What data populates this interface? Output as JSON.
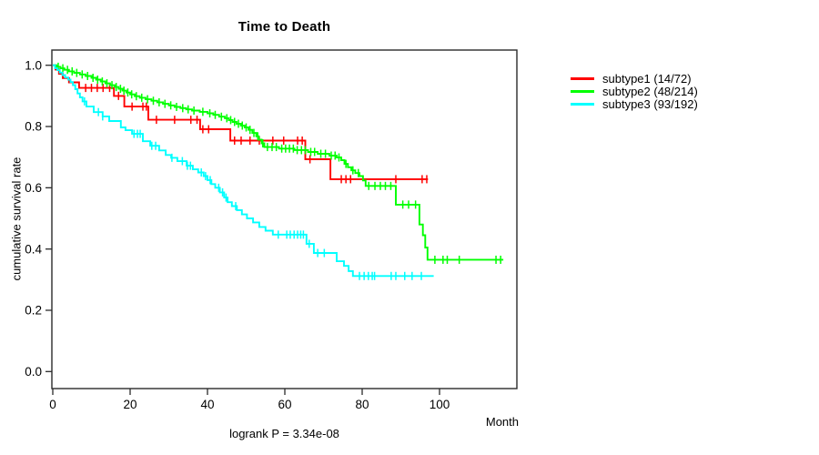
{
  "title": "Time to Death",
  "axes": {
    "x": {
      "label": "Month",
      "ticks": [
        "0",
        "20",
        "40",
        "60",
        "80",
        "100"
      ]
    },
    "y": {
      "label": "cumulative survival rate",
      "ticks": [
        "0.0",
        "0.2",
        "0.4",
        "0.6",
        "0.8",
        "1.0"
      ]
    }
  },
  "annotation": {
    "logrank": "logrank P = 3.34e-08"
  },
  "legend": {
    "items": [
      {
        "label": "subtype1 (14/72)",
        "color": "#ff0000"
      },
      {
        "label": "subtype2 (48/214)",
        "color": "#00ff00"
      },
      {
        "label": "subtype3 (93/192)",
        "color": "#00ffff"
      }
    ]
  },
  "chart_data": {
    "type": "line",
    "variant": "kaplan-meier-step",
    "title": "Time to Death",
    "xlabel": "Month",
    "ylabel": "cumulative survival rate",
    "xlim": [
      0,
      120
    ],
    "ylim": [
      0,
      1.04
    ],
    "x_ticks": [
      0,
      20,
      40,
      60,
      80,
      100
    ],
    "y_ticks": [
      0.0,
      0.2,
      0.4,
      0.6,
      0.8,
      1.0
    ],
    "grid": false,
    "legend_position": "right-outside",
    "annotation": "logrank P = 3.34e-08",
    "series": [
      {
        "name": "subtype1 (14/72)",
        "color": "#ff0000",
        "end": 97,
        "steps": [
          [
            0,
            1.0
          ],
          [
            0.7,
            0.986
          ],
          [
            1.6,
            0.972
          ],
          [
            2.6,
            0.958
          ],
          [
            4.2,
            0.944
          ],
          [
            6.8,
            0.926
          ],
          [
            15.8,
            0.9
          ],
          [
            18.5,
            0.865
          ],
          [
            24.7,
            0.822
          ],
          [
            38.1,
            0.791
          ],
          [
            45.9,
            0.754
          ],
          [
            65.3,
            0.693
          ],
          [
            71.8,
            0.628
          ]
        ],
        "censors": [
          8.5,
          10,
          11.5,
          13,
          14.7,
          17,
          20.5,
          23.3,
          24.2,
          26.8,
          31.5,
          35.7,
          37.3,
          38.8,
          40.3,
          47,
          48.7,
          51,
          53.4,
          56.9,
          59.7,
          63.3,
          64.5,
          66.5,
          74.6,
          75.8,
          77,
          88.7,
          95.5,
          96.7
        ]
      },
      {
        "name": "subtype2 (48/214)",
        "color": "#00ff00",
        "end": 116.5,
        "steps": [
          [
            0,
            1.0
          ],
          [
            1,
            0.995
          ],
          [
            2,
            0.99
          ],
          [
            3,
            0.985
          ],
          [
            4.2,
            0.98
          ],
          [
            5.5,
            0.975
          ],
          [
            7,
            0.97
          ],
          [
            8.5,
            0.965
          ],
          [
            10,
            0.959
          ],
          [
            11.2,
            0.953
          ],
          [
            12.4,
            0.947
          ],
          [
            13.6,
            0.941
          ],
          [
            14.8,
            0.935
          ],
          [
            16,
            0.929
          ],
          [
            17,
            0.923
          ],
          [
            18,
            0.917
          ],
          [
            19,
            0.911
          ],
          [
            20,
            0.905
          ],
          [
            21.2,
            0.899
          ],
          [
            22.5,
            0.894
          ],
          [
            24,
            0.889
          ],
          [
            25.5,
            0.884
          ],
          [
            27,
            0.879
          ],
          [
            28.5,
            0.874
          ],
          [
            30,
            0.869
          ],
          [
            31.5,
            0.864
          ],
          [
            33,
            0.86
          ],
          [
            34.5,
            0.856
          ],
          [
            36,
            0.852
          ],
          [
            38,
            0.848
          ],
          [
            40,
            0.843
          ],
          [
            41.5,
            0.838
          ],
          [
            43,
            0.832
          ],
          [
            44.5,
            0.827
          ],
          [
            45.5,
            0.821
          ],
          [
            46.5,
            0.815
          ],
          [
            47.5,
            0.809
          ],
          [
            48.6,
            0.803
          ],
          [
            49.6,
            0.797
          ],
          [
            50.6,
            0.789
          ],
          [
            51.6,
            0.779
          ],
          [
            52.6,
            0.768
          ],
          [
            53.3,
            0.757
          ],
          [
            54,
            0.745
          ],
          [
            54.7,
            0.733
          ],
          [
            58.5,
            0.728
          ],
          [
            62.5,
            0.723
          ],
          [
            66,
            0.717
          ],
          [
            68.5,
            0.711
          ],
          [
            71.5,
            0.705
          ],
          [
            73.4,
            0.699
          ],
          [
            74.6,
            0.69
          ],
          [
            75.4,
            0.678
          ],
          [
            76.3,
            0.667
          ],
          [
            77.2,
            0.657
          ],
          [
            78.2,
            0.648
          ],
          [
            79.3,
            0.638
          ],
          [
            80.2,
            0.624
          ],
          [
            80.9,
            0.606
          ],
          [
            88.7,
            0.545
          ],
          [
            94.8,
            0.48
          ],
          [
            95.7,
            0.445
          ],
          [
            96.3,
            0.405
          ],
          [
            96.9,
            0.365
          ]
        ],
        "censors": [
          1.4,
          2.6,
          3.8,
          5,
          6.2,
          7.6,
          9,
          10.4,
          11.6,
          12.8,
          14,
          15.3,
          16.4,
          17.5,
          18.4,
          19.4,
          20.4,
          21.6,
          23,
          24.5,
          26,
          27.5,
          29,
          30.5,
          32,
          33.6,
          35,
          36.5,
          38.8,
          40.6,
          42,
          43.6,
          45,
          46,
          47,
          48,
          49,
          50,
          51,
          52,
          53,
          54.3,
          55.5,
          56.7,
          57.8,
          59.2,
          60.2,
          61.2,
          62.2,
          63.2,
          64.3,
          65.3,
          66.7,
          67.7,
          69.3,
          70.5,
          72,
          73,
          74,
          75.8,
          77.6,
          79,
          81.7,
          83.3,
          84.7,
          86,
          87.4,
          90.5,
          92,
          93.8,
          98.8,
          100.9,
          102,
          105.1,
          114.6,
          115.8
        ]
      },
      {
        "name": "subtype3 (93/192)",
        "color": "#00ffff",
        "end": 98.5,
        "steps": [
          [
            0,
            1.0
          ],
          [
            0.6,
            0.99
          ],
          [
            1.2,
            0.984
          ],
          [
            1.8,
            0.976
          ],
          [
            2.5,
            0.968
          ],
          [
            3.2,
            0.96
          ],
          [
            4,
            0.953
          ],
          [
            4.6,
            0.945
          ],
          [
            5.2,
            0.935
          ],
          [
            5.8,
            0.922
          ],
          [
            6.4,
            0.908
          ],
          [
            7,
            0.895
          ],
          [
            7.7,
            0.882
          ],
          [
            8.7,
            0.865
          ],
          [
            10.6,
            0.847
          ],
          [
            12.9,
            0.833
          ],
          [
            14.6,
            0.818
          ],
          [
            17.6,
            0.797
          ],
          [
            18.8,
            0.788
          ],
          [
            20.5,
            0.776
          ],
          [
            23.3,
            0.752
          ],
          [
            25.2,
            0.737
          ],
          [
            27.5,
            0.722
          ],
          [
            29.2,
            0.707
          ],
          [
            30.6,
            0.698
          ],
          [
            32.2,
            0.687
          ],
          [
            34.6,
            0.672
          ],
          [
            36.2,
            0.66
          ],
          [
            37.6,
            0.65
          ],
          [
            39,
            0.638
          ],
          [
            40,
            0.625
          ],
          [
            41,
            0.612
          ],
          [
            42,
            0.6
          ],
          [
            43.2,
            0.585
          ],
          [
            44.3,
            0.568
          ],
          [
            45.2,
            0.553
          ],
          [
            46.3,
            0.54
          ],
          [
            47.6,
            0.527
          ],
          [
            48.9,
            0.513
          ],
          [
            50.2,
            0.5
          ],
          [
            51.8,
            0.487
          ],
          [
            53.4,
            0.472
          ],
          [
            55,
            0.46
          ],
          [
            56.9,
            0.447
          ],
          [
            65.6,
            0.417
          ],
          [
            67.5,
            0.387
          ],
          [
            73.4,
            0.36
          ],
          [
            75.3,
            0.345
          ],
          [
            76.5,
            0.328
          ],
          [
            77.6,
            0.312
          ]
        ],
        "censors": [
          8.2,
          11.8,
          12.9,
          21,
          21.9,
          22.6,
          25.6,
          26.6,
          30.8,
          33.5,
          34.8,
          35.6,
          38.4,
          39.5,
          40.7,
          42.9,
          43.9,
          44.8,
          47.3,
          58.3,
          60.5,
          61.4,
          62.4,
          63.3,
          64.1,
          64.8,
          66.3,
          68.5,
          70.2,
          79.3,
          80.5,
          81.6,
          82.6,
          83.2,
          87.5,
          88.7,
          91,
          92.9,
          95.3
        ]
      }
    ]
  }
}
